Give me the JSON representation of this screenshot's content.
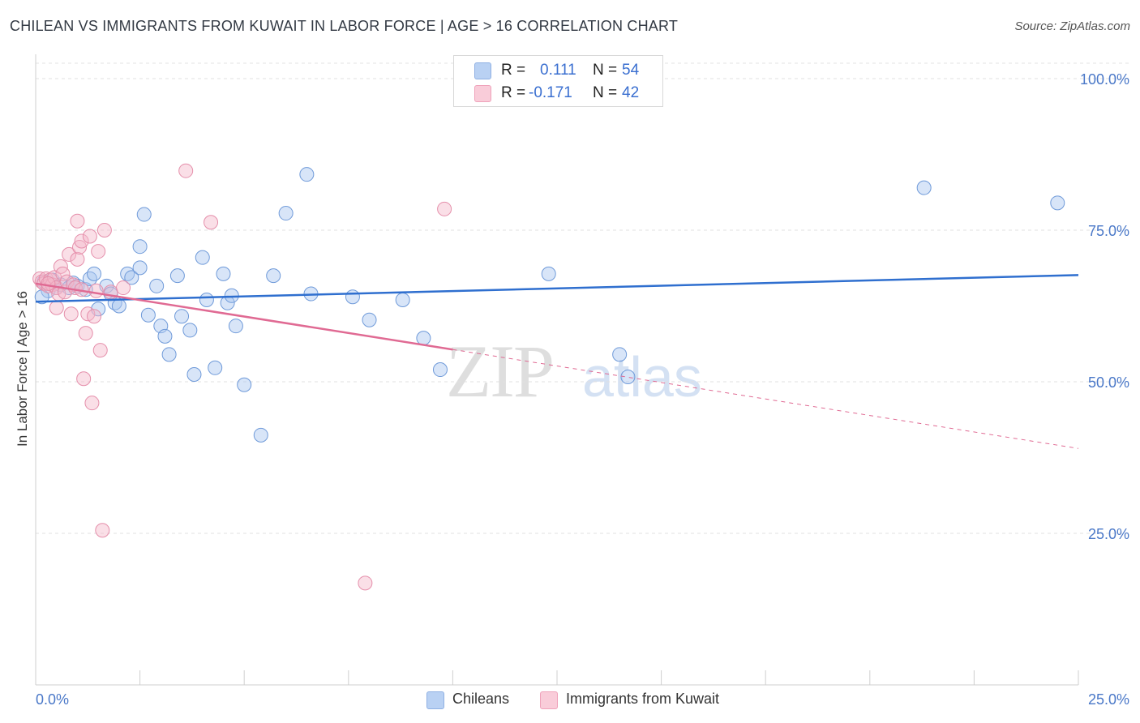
{
  "title": "CHILEAN VS IMMIGRANTS FROM KUWAIT IN LABOR FORCE | AGE > 16 CORRELATION CHART",
  "source": "Source: ZipAtlas.com",
  "watermark": {
    "zip": "ZIP",
    "atlas": "atlas"
  },
  "legend": {
    "r_label": "R =",
    "n_label": "N =",
    "series1": {
      "r": "0.111",
      "n": "54"
    },
    "series2": {
      "r": "-0.171",
      "n": "42"
    }
  },
  "colors": {
    "chileans_fill": "#a9c6ef",
    "chileans_line": "#2f6fcf",
    "kuwait_fill": "#f5b7c9",
    "kuwait_line": "#e06a93",
    "tick_text": "#4a78c8"
  },
  "chart_data": {
    "type": "scatter",
    "title": "CHILEAN VS IMMIGRANTS FROM KUWAIT IN LABOR FORCE | AGE > 16 CORRELATION CHART",
    "xlabel": "",
    "ylabel": "In Labor Force | Age > 16",
    "xlim": [
      0,
      25
    ],
    "ylim": [
      0,
      103
    ],
    "x_tick_labels": [
      "0.0%",
      "25.0%"
    ],
    "y_ticks": [
      25,
      50,
      75,
      100
    ],
    "y_tick_labels": [
      "25.0%",
      "50.0%",
      "75.0%",
      "100.0%"
    ],
    "grid": true,
    "legend_position": "top-center",
    "series": [
      {
        "name": "Chileans",
        "r": 0.111,
        "n": 54,
        "trend": {
          "x0": 0,
          "y0": 63.2,
          "x1": 25,
          "y1": 67.6,
          "dashed_from": null
        },
        "points": [
          [
            0.2,
            66.5
          ],
          [
            0.3,
            65.0
          ],
          [
            0.4,
            66.8
          ],
          [
            0.5,
            65.5
          ],
          [
            0.6,
            66.0
          ],
          [
            0.8,
            65.5
          ],
          [
            0.9,
            66.3
          ],
          [
            1.0,
            65.8
          ],
          [
            1.2,
            65.2
          ],
          [
            1.3,
            67.0
          ],
          [
            1.4,
            67.8
          ],
          [
            1.5,
            62.0
          ],
          [
            1.7,
            65.8
          ],
          [
            1.8,
            64.5
          ],
          [
            1.9,
            63.0
          ],
          [
            2.0,
            62.5
          ],
          [
            2.2,
            67.8
          ],
          [
            2.3,
            67.2
          ],
          [
            2.5,
            72.3
          ],
          [
            2.5,
            68.8
          ],
          [
            2.6,
            77.6
          ],
          [
            2.7,
            61.0
          ],
          [
            2.9,
            65.8
          ],
          [
            3.0,
            59.2
          ],
          [
            3.1,
            57.5
          ],
          [
            3.2,
            54.5
          ],
          [
            3.4,
            67.5
          ],
          [
            3.5,
            60.8
          ],
          [
            3.7,
            58.5
          ],
          [
            3.8,
            51.2
          ],
          [
            4.0,
            70.5
          ],
          [
            4.1,
            63.5
          ],
          [
            4.3,
            52.3
          ],
          [
            4.5,
            67.8
          ],
          [
            4.6,
            63.0
          ],
          [
            4.7,
            64.2
          ],
          [
            4.8,
            59.2
          ],
          [
            5.0,
            49.5
          ],
          [
            5.4,
            41.2
          ],
          [
            5.7,
            67.5
          ],
          [
            6.0,
            77.8
          ],
          [
            6.5,
            84.2
          ],
          [
            6.6,
            64.5
          ],
          [
            7.6,
            64.0
          ],
          [
            8.0,
            60.2
          ],
          [
            8.8,
            63.5
          ],
          [
            9.3,
            57.2
          ],
          [
            9.7,
            52.0
          ],
          [
            12.3,
            67.8
          ],
          [
            14.0,
            54.5
          ],
          [
            14.2,
            50.8
          ],
          [
            21.3,
            82.0
          ],
          [
            24.5,
            79.5
          ],
          [
            0.15,
            64.0
          ]
        ]
      },
      {
        "name": "Immigrants from Kuwait",
        "r": -0.171,
        "n": 42,
        "trend": {
          "x0": 0,
          "y0": 66.2,
          "x1": 25,
          "y1": 39.0,
          "dashed_from": 10.0
        },
        "points": [
          [
            0.1,
            67.0
          ],
          [
            0.15,
            66.5
          ],
          [
            0.2,
            66.2
          ],
          [
            0.25,
            67.0
          ],
          [
            0.3,
            65.8
          ],
          [
            0.35,
            66.8
          ],
          [
            0.4,
            66.0
          ],
          [
            0.45,
            67.2
          ],
          [
            0.5,
            65.5
          ],
          [
            0.5,
            62.2
          ],
          [
            0.55,
            64.5
          ],
          [
            0.6,
            69.0
          ],
          [
            0.65,
            67.8
          ],
          [
            0.7,
            64.8
          ],
          [
            0.75,
            66.5
          ],
          [
            0.8,
            71.0
          ],
          [
            0.85,
            61.2
          ],
          [
            0.9,
            66.0
          ],
          [
            0.95,
            65.5
          ],
          [
            1.0,
            70.2
          ],
          [
            1.0,
            76.5
          ],
          [
            1.05,
            72.2
          ],
          [
            1.1,
            73.2
          ],
          [
            1.1,
            65.2
          ],
          [
            1.15,
            50.5
          ],
          [
            1.2,
            58.0
          ],
          [
            1.25,
            61.2
          ],
          [
            1.3,
            74.0
          ],
          [
            1.35,
            46.5
          ],
          [
            1.4,
            60.8
          ],
          [
            1.45,
            65.0
          ],
          [
            1.5,
            71.5
          ],
          [
            1.55,
            55.2
          ],
          [
            1.6,
            25.5
          ],
          [
            1.65,
            75.0
          ],
          [
            1.8,
            64.8
          ],
          [
            2.1,
            65.5
          ],
          [
            3.6,
            84.8
          ],
          [
            4.2,
            76.3
          ],
          [
            7.9,
            16.8
          ],
          [
            9.8,
            78.5
          ],
          [
            0.3,
            66.2
          ]
        ]
      }
    ]
  },
  "bottom_legend": {
    "item1": "Chileans",
    "item2": "Immigrants from Kuwait"
  }
}
